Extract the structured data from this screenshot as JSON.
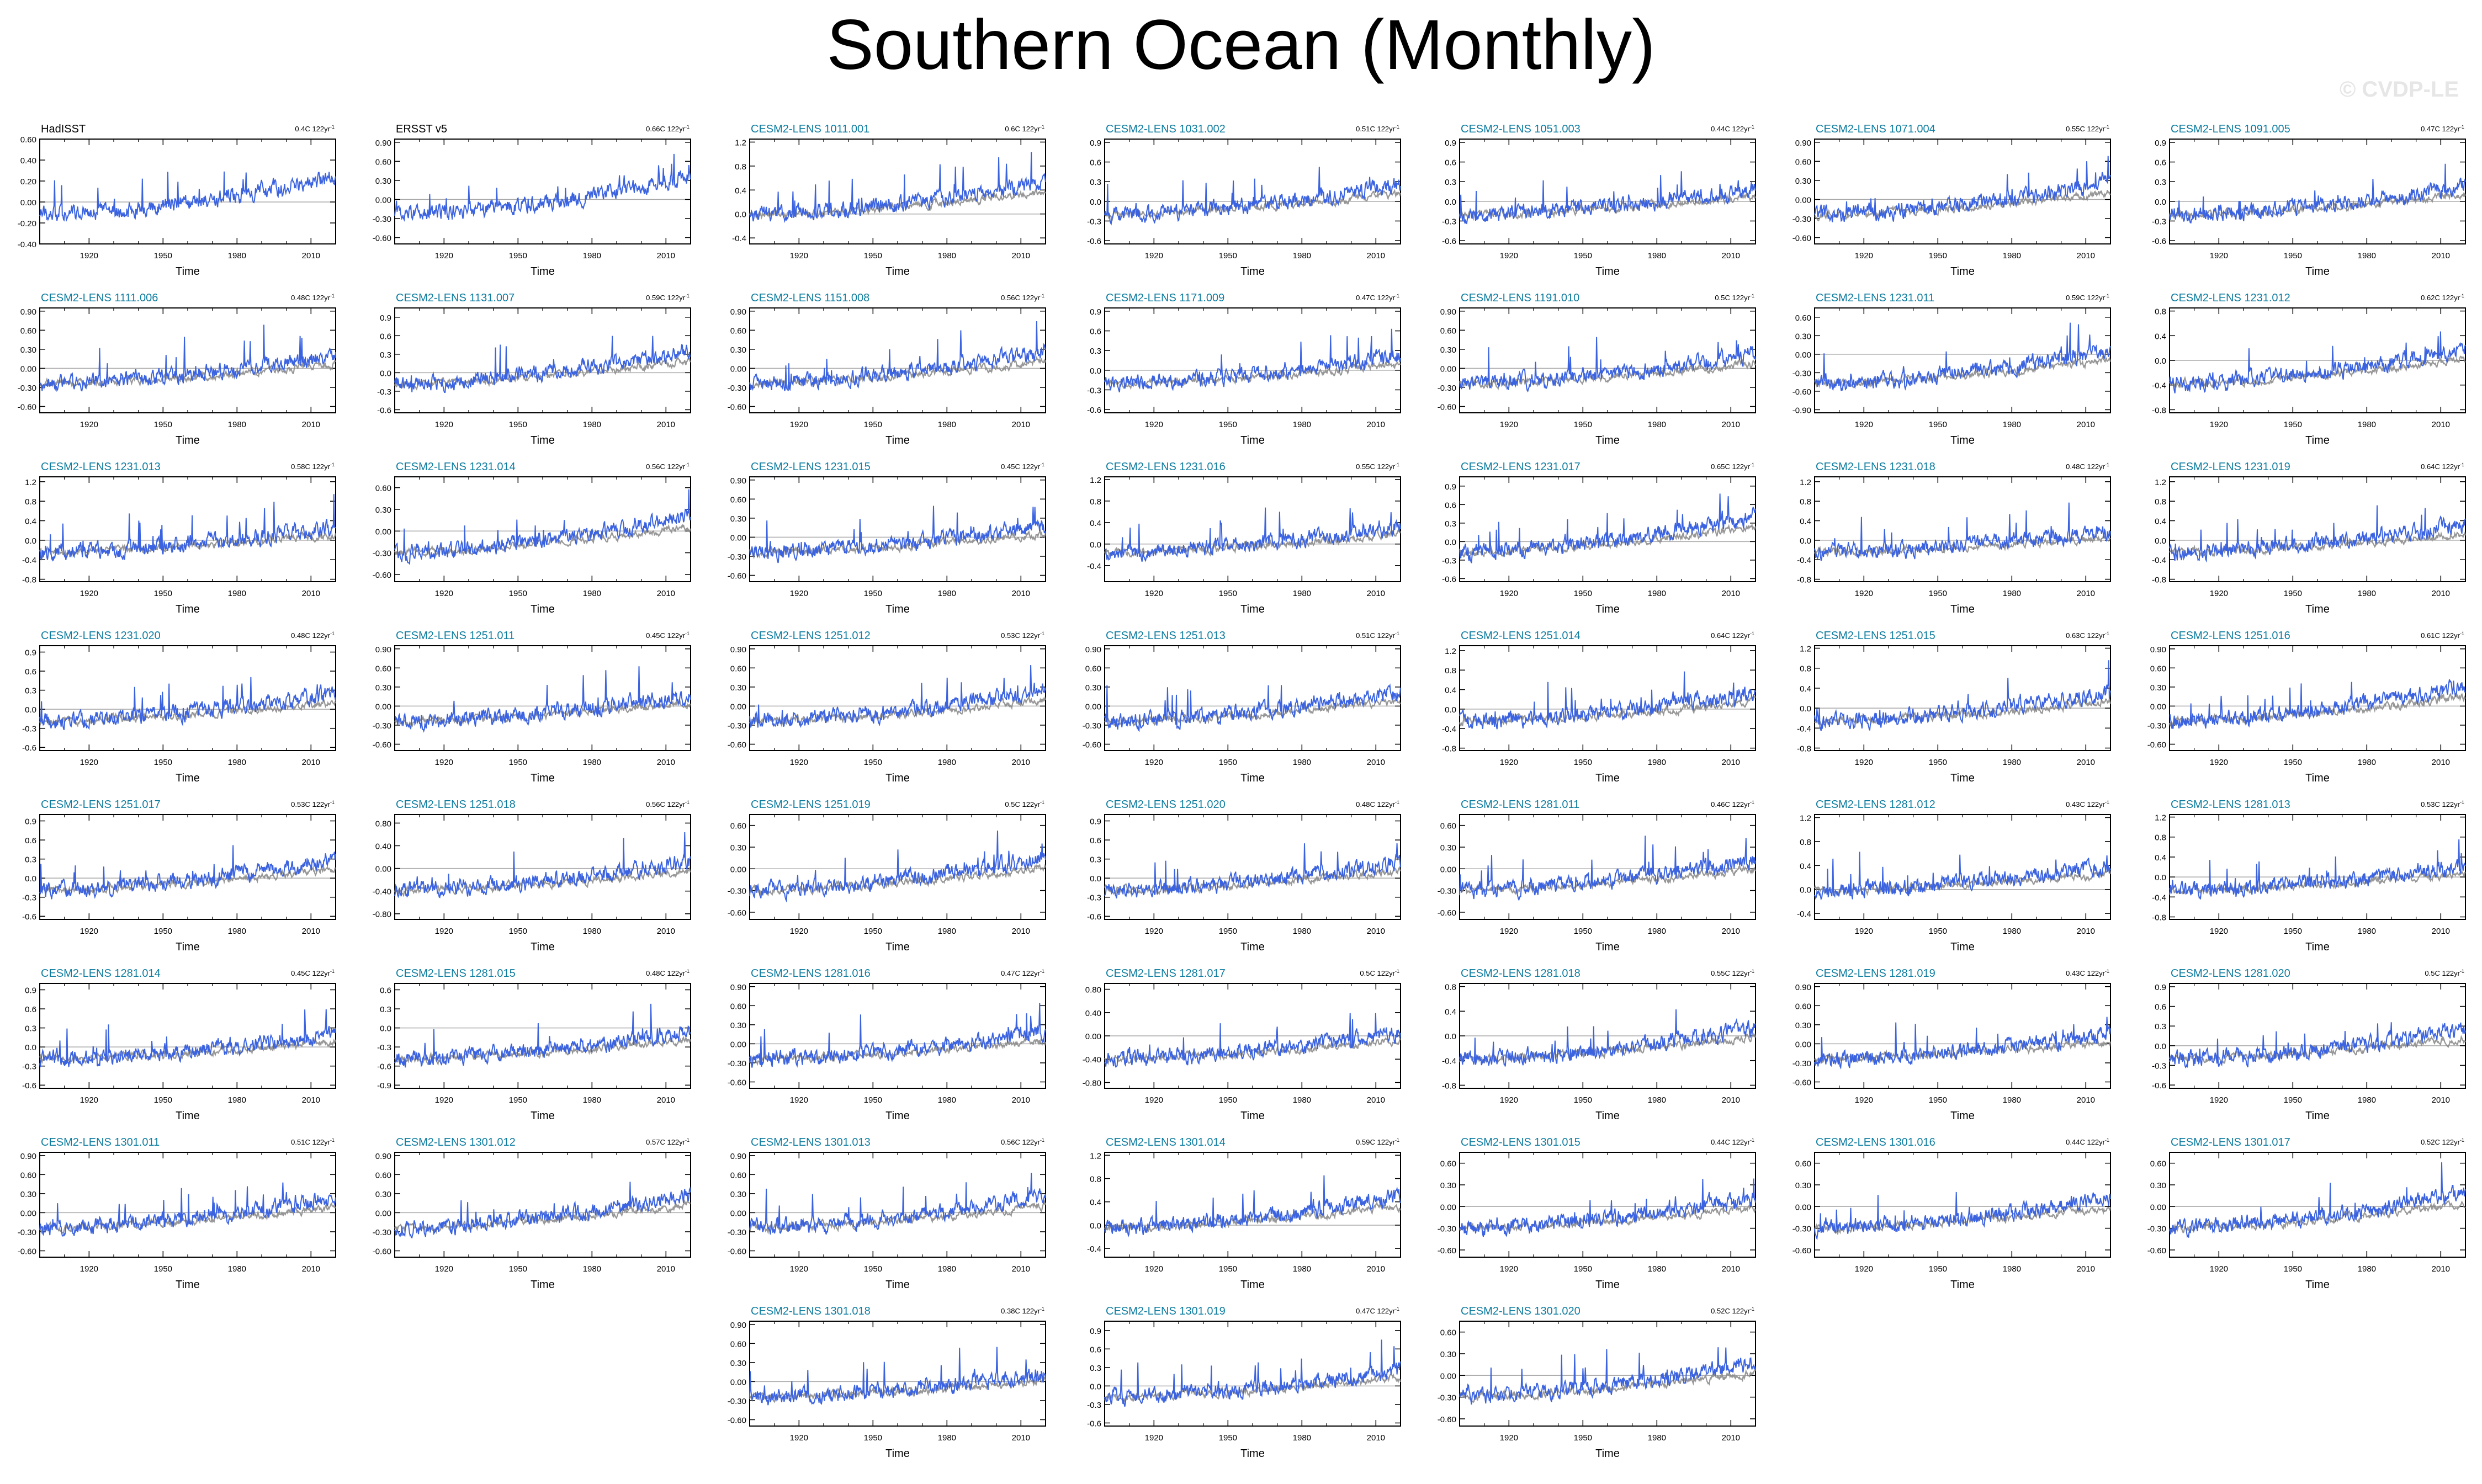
{
  "title": "Southern Ocean (Monthly)",
  "watermark": "© CVDP-LE",
  "colors": {
    "observed": "#000000",
    "member": "#0e7da0",
    "series": "#3b63e0",
    "ensemble_mean": "#8c8c8c",
    "frame": "#000000"
  },
  "chart_data": {
    "type": "line",
    "xlabel": "Time",
    "x_range": [
      1900,
      2020
    ],
    "x_ticks": [
      1920,
      1950,
      1980,
      2010
    ],
    "grid": false,
    "panels": [
      {
        "name": "HadISST",
        "trend": "0.4C 122yr",
        "obs": true,
        "ylim": [
          -0.4,
          0.6
        ],
        "yticks": [
          "0.60",
          "0.40",
          "0.20",
          "0.00",
          "-0.20",
          "-0.40"
        ]
      },
      {
        "name": "ERSST v5",
        "trend": "0.66C 122yr",
        "obs": true,
        "ylim": [
          -0.7,
          0.95
        ],
        "yticks": [
          "0.90",
          "0.60",
          "0.30",
          "0.00",
          "-0.30",
          "-0.60"
        ]
      },
      {
        "name": "CESM2-LENS 1011.001",
        "trend": "0.6C 122yr",
        "ylim": [
          -0.5,
          1.25
        ],
        "yticks": [
          "1.2",
          "0.8",
          "0.4",
          "0.0",
          "-0.4"
        ]
      },
      {
        "name": "CESM2-LENS 1031.002",
        "trend": "0.51C 122yr",
        "ylim": [
          -0.65,
          0.95
        ],
        "yticks": [
          "0.9",
          "0.6",
          "0.3",
          "0.0",
          "-0.3",
          "-0.6"
        ]
      },
      {
        "name": "CESM2-LENS 1051.003",
        "trend": "0.44C 122yr",
        "ylim": [
          -0.65,
          0.95
        ],
        "yticks": [
          "0.9",
          "0.6",
          "0.3",
          "0.0",
          "-0.3",
          "-0.6"
        ]
      },
      {
        "name": "CESM2-LENS 1071.004",
        "trend": "0.55C 122yr",
        "ylim": [
          -0.7,
          0.95
        ],
        "yticks": [
          "0.90",
          "0.60",
          "0.30",
          "0.00",
          "-0.30",
          "-0.60"
        ]
      },
      {
        "name": "CESM2-LENS 1091.005",
        "trend": "0.47C 122yr",
        "ylim": [
          -0.65,
          0.95
        ],
        "yticks": [
          "0.9",
          "0.6",
          "0.3",
          "0.0",
          "-0.3",
          "-0.6"
        ]
      },
      {
        "name": "CESM2-LENS 1111.006",
        "trend": "0.48C 122yr",
        "ylim": [
          -0.7,
          0.95
        ],
        "yticks": [
          "0.90",
          "0.60",
          "0.30",
          "0.00",
          "-0.30",
          "-0.60"
        ]
      },
      {
        "name": "CESM2-LENS 1131.007",
        "trend": "0.59C 122yr",
        "ylim": [
          -0.65,
          1.05
        ],
        "yticks": [
          "0.9",
          "0.6",
          "0.3",
          "0.0",
          "-0.3",
          "-0.6"
        ]
      },
      {
        "name": "CESM2-LENS 1151.008",
        "trend": "0.56C 122yr",
        "ylim": [
          -0.7,
          0.95
        ],
        "yticks": [
          "0.90",
          "0.60",
          "0.30",
          "0.00",
          "-0.30",
          "-0.60"
        ]
      },
      {
        "name": "CESM2-LENS 1171.009",
        "trend": "0.47C 122yr",
        "ylim": [
          -0.65,
          0.95
        ],
        "yticks": [
          "0.9",
          "0.6",
          "0.3",
          "0.0",
          "-0.3",
          "-0.6"
        ]
      },
      {
        "name": "CESM2-LENS 1191.010",
        "trend": "0.5C 122yr",
        "ylim": [
          -0.7,
          0.95
        ],
        "yticks": [
          "0.90",
          "0.60",
          "0.30",
          "0.00",
          "-0.30",
          "-0.60"
        ]
      },
      {
        "name": "CESM2-LENS 1231.011",
        "trend": "0.59C 122yr",
        "ylim": [
          -0.95,
          0.75
        ],
        "yticks": [
          "0.60",
          "0.30",
          "0.00",
          "-0.30",
          "-0.60",
          "-0.90"
        ]
      },
      {
        "name": "CESM2-LENS 1231.012",
        "trend": "0.62C 122yr",
        "ylim": [
          -0.85,
          0.85
        ],
        "yticks": [
          "0.8",
          "0.4",
          "0.0",
          "-0.4",
          "-0.8"
        ]
      },
      {
        "name": "CESM2-LENS 1231.013",
        "trend": "0.58C 122yr",
        "ylim": [
          -0.85,
          1.3
        ],
        "yticks": [
          "1.2",
          "0.8",
          "0.4",
          "0.0",
          "-0.4",
          "-0.8"
        ]
      },
      {
        "name": "CESM2-LENS 1231.014",
        "trend": "0.56C 122yr",
        "ylim": [
          -0.7,
          0.75
        ],
        "yticks": [
          "0.60",
          "0.30",
          "0.00",
          "-0.30",
          "-0.60"
        ]
      },
      {
        "name": "CESM2-LENS 1231.015",
        "trend": "0.45C 122yr",
        "ylim": [
          -0.7,
          0.95
        ],
        "yticks": [
          "0.90",
          "0.60",
          "0.30",
          "0.00",
          "-0.30",
          "-0.60"
        ]
      },
      {
        "name": "CESM2-LENS 1231.016",
        "trend": "0.55C 122yr",
        "ylim": [
          -0.7,
          1.25
        ],
        "yticks": [
          "1.2",
          "0.8",
          "0.4",
          "0.0",
          "-0.4"
        ]
      },
      {
        "name": "CESM2-LENS 1231.017",
        "trend": "0.65C 122yr",
        "ylim": [
          -0.65,
          1.05
        ],
        "yticks": [
          "0.9",
          "0.6",
          "0.3",
          "0.0",
          "-0.3",
          "-0.6"
        ]
      },
      {
        "name": "CESM2-LENS 1231.018",
        "trend": "0.48C 122yr",
        "ylim": [
          -0.85,
          1.3
        ],
        "yticks": [
          "1.2",
          "0.8",
          "0.4",
          "0.0",
          "-0.4",
          "-0.8"
        ]
      },
      {
        "name": "CESM2-LENS 1231.019",
        "trend": "0.64C 122yr",
        "ylim": [
          -0.85,
          1.3
        ],
        "yticks": [
          "1.2",
          "0.8",
          "0.4",
          "0.0",
          "-0.4",
          "-0.8"
        ]
      },
      {
        "name": "CESM2-LENS 1231.020",
        "trend": "0.48C 122yr",
        "ylim": [
          -0.65,
          1.0
        ],
        "yticks": [
          "0.9",
          "0.6",
          "0.3",
          "0.0",
          "-0.3",
          "-0.6"
        ]
      },
      {
        "name": "CESM2-LENS 1251.011",
        "trend": "0.45C 122yr",
        "ylim": [
          -0.7,
          0.95
        ],
        "yticks": [
          "0.90",
          "0.60",
          "0.30",
          "0.00",
          "-0.30",
          "-0.60"
        ]
      },
      {
        "name": "CESM2-LENS 1251.012",
        "trend": "0.53C 122yr",
        "ylim": [
          -0.7,
          0.95
        ],
        "yticks": [
          "0.90",
          "0.60",
          "0.30",
          "0.00",
          "-0.30",
          "-0.60"
        ]
      },
      {
        "name": "CESM2-LENS 1251.013",
        "trend": "0.51C 122yr",
        "ylim": [
          -0.7,
          0.95
        ],
        "yticks": [
          "0.90",
          "0.60",
          "0.30",
          "0.00",
          "-0.30",
          "-0.60"
        ]
      },
      {
        "name": "CESM2-LENS 1251.014",
        "trend": "0.64C 122yr",
        "ylim": [
          -0.85,
          1.3
        ],
        "yticks": [
          "1.2",
          "0.8",
          "0.4",
          "0.0",
          "-0.4",
          "-0.8"
        ]
      },
      {
        "name": "CESM2-LENS 1251.015",
        "trend": "0.63C 122yr",
        "ylim": [
          -0.85,
          1.25
        ],
        "yticks": [
          "1.2",
          "0.8",
          "0.4",
          "0.0",
          "-0.4",
          "-0.8"
        ]
      },
      {
        "name": "CESM2-LENS 1251.016",
        "trend": "0.61C 122yr",
        "ylim": [
          -0.7,
          0.95
        ],
        "yticks": [
          "0.90",
          "0.60",
          "0.30",
          "0.00",
          "-0.30",
          "-0.60"
        ]
      },
      {
        "name": "CESM2-LENS 1251.017",
        "trend": "0.53C 122yr",
        "ylim": [
          -0.65,
          1.0
        ],
        "yticks": [
          "0.9",
          "0.6",
          "0.3",
          "0.0",
          "-0.3",
          "-0.6"
        ]
      },
      {
        "name": "CESM2-LENS 1251.018",
        "trend": "0.56C 122yr",
        "ylim": [
          -0.9,
          0.95
        ],
        "yticks": [
          "0.80",
          "0.40",
          "0.00",
          "-0.40",
          "-0.80"
        ]
      },
      {
        "name": "CESM2-LENS 1251.019",
        "trend": "0.5C 122yr",
        "ylim": [
          -0.7,
          0.75
        ],
        "yticks": [
          "0.60",
          "0.30",
          "0.00",
          "-0.30",
          "-0.60"
        ]
      },
      {
        "name": "CESM2-LENS 1251.020",
        "trend": "0.48C 122yr",
        "ylim": [
          -0.65,
          1.0
        ],
        "yticks": [
          "0.9",
          "0.6",
          "0.3",
          "0.0",
          "-0.3",
          "-0.6"
        ]
      },
      {
        "name": "CESM2-LENS 1281.011",
        "trend": "0.46C 122yr",
        "ylim": [
          -0.7,
          0.75
        ],
        "yticks": [
          "0.60",
          "0.30",
          "0.00",
          "-0.30",
          "-0.60"
        ]
      },
      {
        "name": "CESM2-LENS 1281.012",
        "trend": "0.43C 122yr",
        "ylim": [
          -0.5,
          1.25
        ],
        "yticks": [
          "1.2",
          "0.8",
          "0.4",
          "0.0",
          "-0.4"
        ]
      },
      {
        "name": "CESM2-LENS 1281.013",
        "trend": "0.53C 122yr",
        "ylim": [
          -0.85,
          1.25
        ],
        "yticks": [
          "1.2",
          "0.8",
          "0.4",
          "0.0",
          "-0.4",
          "-0.8"
        ]
      },
      {
        "name": "CESM2-LENS 1281.014",
        "trend": "0.45C 122yr",
        "ylim": [
          -0.65,
          1.0
        ],
        "yticks": [
          "0.9",
          "0.6",
          "0.3",
          "0.0",
          "-0.3",
          "-0.6"
        ]
      },
      {
        "name": "CESM2-LENS 1281.015",
        "trend": "0.48C 122yr",
        "ylim": [
          -0.95,
          0.7
        ],
        "yticks": [
          "0.6",
          "0.3",
          "0.0",
          "-0.3",
          "-0.6",
          "-0.9"
        ]
      },
      {
        "name": "CESM2-LENS 1281.016",
        "trend": "0.47C 122yr",
        "ylim": [
          -0.7,
          0.95
        ],
        "yticks": [
          "0.90",
          "0.60",
          "0.30",
          "0.00",
          "-0.30",
          "-0.60"
        ]
      },
      {
        "name": "CESM2-LENS 1281.017",
        "trend": "0.5C 122yr",
        "ylim": [
          -0.9,
          0.9
        ],
        "yticks": [
          "0.80",
          "0.40",
          "0.00",
          "-0.40",
          "-0.80"
        ]
      },
      {
        "name": "CESM2-LENS 1281.018",
        "trend": "0.55C 122yr",
        "ylim": [
          -0.85,
          0.85
        ],
        "yticks": [
          "0.8",
          "0.4",
          "0.0",
          "-0.4",
          "-0.8"
        ]
      },
      {
        "name": "CESM2-LENS 1281.019",
        "trend": "0.43C 122yr",
        "ylim": [
          -0.7,
          0.95
        ],
        "yticks": [
          "0.90",
          "0.60",
          "0.30",
          "0.00",
          "-0.30",
          "-0.60"
        ]
      },
      {
        "name": "CESM2-LENS 1281.020",
        "trend": "0.5C 122yr",
        "ylim": [
          -0.65,
          0.95
        ],
        "yticks": [
          "0.9",
          "0.6",
          "0.3",
          "0.0",
          "-0.3",
          "-0.6"
        ]
      },
      {
        "name": "CESM2-LENS 1301.011",
        "trend": "0.51C 122yr",
        "ylim": [
          -0.7,
          0.95
        ],
        "yticks": [
          "0.90",
          "0.60",
          "0.30",
          "0.00",
          "-0.30",
          "-0.60"
        ]
      },
      {
        "name": "CESM2-LENS 1301.012",
        "trend": "0.57C 122yr",
        "ylim": [
          -0.7,
          0.95
        ],
        "yticks": [
          "0.90",
          "0.60",
          "0.30",
          "0.00",
          "-0.30",
          "-0.60"
        ]
      },
      {
        "name": "CESM2-LENS 1301.013",
        "trend": "0.56C 122yr",
        "ylim": [
          -0.7,
          0.95
        ],
        "yticks": [
          "0.90",
          "0.60",
          "0.30",
          "0.00",
          "-0.30",
          "-0.60"
        ]
      },
      {
        "name": "CESM2-LENS 1301.014",
        "trend": "0.59C 122yr",
        "ylim": [
          -0.55,
          1.25
        ],
        "yticks": [
          "1.2",
          "0.8",
          "0.4",
          "0.0",
          "-0.4"
        ]
      },
      {
        "name": "CESM2-LENS 1301.015",
        "trend": "0.44C 122yr",
        "ylim": [
          -0.7,
          0.75
        ],
        "yticks": [
          "0.60",
          "0.30",
          "0.00",
          "-0.30",
          "-0.60"
        ]
      },
      {
        "name": "CESM2-LENS 1301.016",
        "trend": "0.44C 122yr",
        "ylim": [
          -0.7,
          0.75
        ],
        "yticks": [
          "0.60",
          "0.30",
          "0.00",
          "-0.30",
          "-0.60"
        ]
      },
      {
        "name": "CESM2-LENS 1301.017",
        "trend": "0.52C 122yr",
        "ylim": [
          -0.7,
          0.75
        ],
        "yticks": [
          "0.60",
          "0.30",
          "0.00",
          "-0.30",
          "-0.60"
        ]
      },
      {
        "name": "CESM2-LENS 1301.018",
        "trend": "0.38C 122yr",
        "ylim": [
          -0.7,
          0.95
        ],
        "yticks": [
          "0.90",
          "0.60",
          "0.30",
          "0.00",
          "-0.30",
          "-0.60"
        ]
      },
      {
        "name": "CESM2-LENS 1301.019",
        "trend": "0.47C 122yr",
        "ylim": [
          -0.65,
          1.05
        ],
        "yticks": [
          "0.9",
          "0.6",
          "0.3",
          "0.0",
          "-0.3",
          "-0.6"
        ]
      },
      {
        "name": "CESM2-LENS 1301.020",
        "trend": "0.52C 122yr",
        "ylim": [
          -0.7,
          0.75
        ],
        "yticks": [
          "0.60",
          "0.30",
          "0.00",
          "-0.30",
          "-0.60"
        ]
      }
    ]
  }
}
